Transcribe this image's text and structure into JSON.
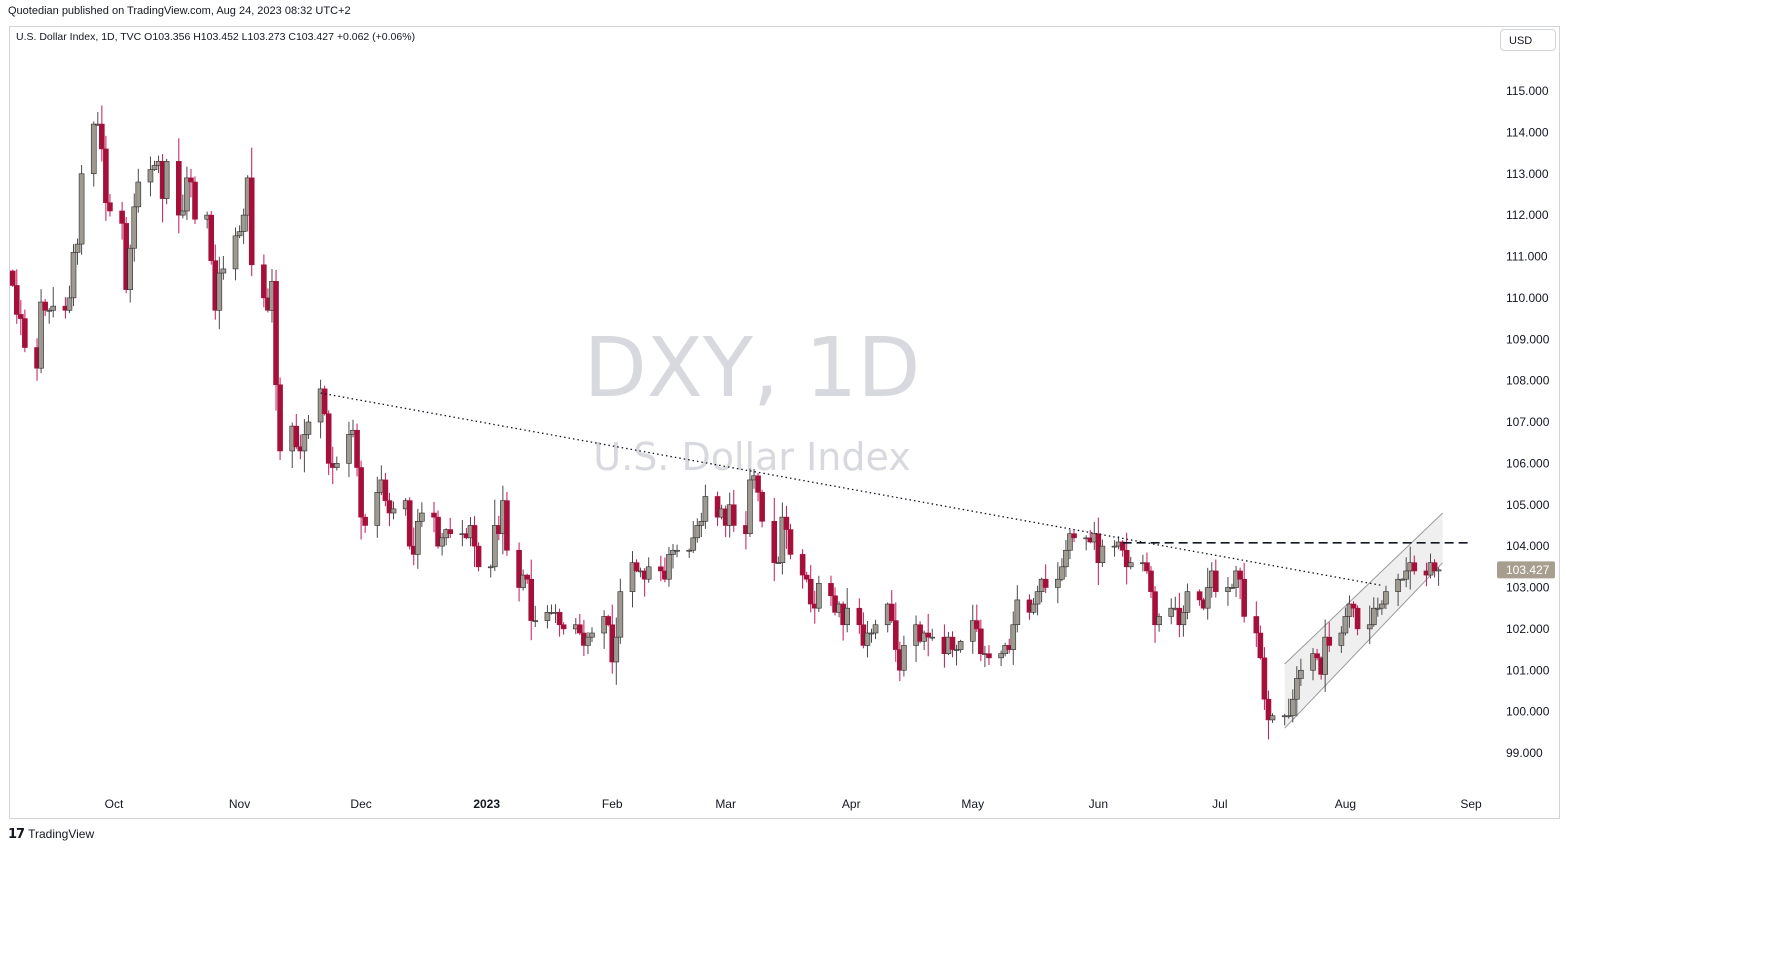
{
  "header": {
    "published": "Quotedian published on TradingView.com, Aug 24, 2023 08:32 UTC+2",
    "legend": "U.S. Dollar Index, 1D, TVC  O103.356  H103.452  L103.273  C103.427  +0.062 (+0.06%)",
    "currency": "USD"
  },
  "footer": {
    "brand_logo": "𝟭𝟳",
    "brand": "TradingView"
  },
  "chart_data": {
    "type": "candlestick",
    "title": "DXY, 1D",
    "subtitle": "U.S. Dollar Index",
    "ylim": [
      98.3,
      116.2
    ],
    "y_ticks": [
      "115.000",
      "114.000",
      "113.000",
      "112.000",
      "111.000",
      "110.000",
      "109.000",
      "108.000",
      "107.000",
      "106.000",
      "105.000",
      "104.000",
      "103.000",
      "102.000",
      "101.000",
      "100.000",
      "99.000"
    ],
    "y_tick_values": [
      115,
      114,
      113,
      112,
      111,
      110,
      109,
      108,
      107,
      106,
      105,
      104,
      103,
      102,
      101,
      100,
      99
    ],
    "x_ticks": [
      {
        "label": "Oct",
        "date": "2022-10-01",
        "bold": false
      },
      {
        "label": "Nov",
        "date": "2022-11-01",
        "bold": false
      },
      {
        "label": "Dec",
        "date": "2022-12-01",
        "bold": false
      },
      {
        "label": "2023",
        "date": "2023-01-01",
        "bold": true
      },
      {
        "label": "Feb",
        "date": "2023-02-01",
        "bold": false
      },
      {
        "label": "Mar",
        "date": "2023-03-01",
        "bold": false
      },
      {
        "label": "Apr",
        "date": "2023-04-01",
        "bold": false
      },
      {
        "label": "May",
        "date": "2023-05-01",
        "bold": false
      },
      {
        "label": "Jun",
        "date": "2023-06-01",
        "bold": false
      },
      {
        "label": "Jul",
        "date": "2023-07-01",
        "bold": false
      },
      {
        "label": "Aug",
        "date": "2023-08-01",
        "bold": false
      },
      {
        "label": "Sep",
        "date": "2023-09-01",
        "bold": false
      }
    ],
    "last_price": "103.427",
    "last_value": 103.427,
    "colors": {
      "up": "#9e9a91",
      "down": "#a5103b",
      "wick_up": "#4a4a4a",
      "wick_down": "#c2185b",
      "last_box": "#a89e90"
    },
    "closes": [
      {
        "d": "2022-09-06",
        "v": 110.3
      },
      {
        "d": "2022-09-07",
        "v": 109.6
      },
      {
        "d": "2022-09-08",
        "v": 109.5
      },
      {
        "d": "2022-09-09",
        "v": 108.8
      },
      {
        "d": "2022-09-12",
        "v": 108.3
      },
      {
        "d": "2022-09-13",
        "v": 109.9
      },
      {
        "d": "2022-09-14",
        "v": 109.7
      },
      {
        "d": "2022-09-15",
        "v": 109.7
      },
      {
        "d": "2022-09-16",
        "v": 109.8
      },
      {
        "d": "2022-09-19",
        "v": 109.7
      },
      {
        "d": "2022-09-20",
        "v": 110.0
      },
      {
        "d": "2022-09-21",
        "v": 111.1
      },
      {
        "d": "2022-09-22",
        "v": 111.3
      },
      {
        "d": "2022-09-23",
        "v": 113.0
      },
      {
        "d": "2022-09-26",
        "v": 114.2
      },
      {
        "d": "2022-09-27",
        "v": 114.2
      },
      {
        "d": "2022-09-28",
        "v": 113.6
      },
      {
        "d": "2022-09-29",
        "v": 112.3
      },
      {
        "d": "2022-09-30",
        "v": 112.1
      },
      {
        "d": "2022-10-03",
        "v": 111.8
      },
      {
        "d": "2022-10-04",
        "v": 110.2
      },
      {
        "d": "2022-10-05",
        "v": 111.2
      },
      {
        "d": "2022-10-06",
        "v": 112.2
      },
      {
        "d": "2022-10-07",
        "v": 112.8
      },
      {
        "d": "2022-10-10",
        "v": 113.1
      },
      {
        "d": "2022-10-11",
        "v": 113.2
      },
      {
        "d": "2022-10-12",
        "v": 113.3
      },
      {
        "d": "2022-10-13",
        "v": 112.4
      },
      {
        "d": "2022-10-14",
        "v": 113.3
      },
      {
        "d": "2022-10-17",
        "v": 112.0
      },
      {
        "d": "2022-10-18",
        "v": 112.1
      },
      {
        "d": "2022-10-19",
        "v": 112.9
      },
      {
        "d": "2022-10-20",
        "v": 112.8
      },
      {
        "d": "2022-10-21",
        "v": 111.9
      },
      {
        "d": "2022-10-24",
        "v": 112.0
      },
      {
        "d": "2022-10-25",
        "v": 110.9
      },
      {
        "d": "2022-10-26",
        "v": 109.7
      },
      {
        "d": "2022-10-27",
        "v": 110.6
      },
      {
        "d": "2022-10-28",
        "v": 110.7
      },
      {
        "d": "2022-10-31",
        "v": 111.5
      },
      {
        "d": "2022-11-01",
        "v": 111.6
      },
      {
        "d": "2022-11-02",
        "v": 112.0
      },
      {
        "d": "2022-11-03",
        "v": 112.9
      },
      {
        "d": "2022-11-04",
        "v": 110.8
      },
      {
        "d": "2022-11-07",
        "v": 110.0
      },
      {
        "d": "2022-11-08",
        "v": 109.7
      },
      {
        "d": "2022-11-09",
        "v": 110.4
      },
      {
        "d": "2022-11-10",
        "v": 107.9
      },
      {
        "d": "2022-11-11",
        "v": 106.3
      },
      {
        "d": "2022-11-14",
        "v": 106.9
      },
      {
        "d": "2022-11-15",
        "v": 106.4
      },
      {
        "d": "2022-11-16",
        "v": 106.3
      },
      {
        "d": "2022-11-17",
        "v": 106.7
      },
      {
        "d": "2022-11-18",
        "v": 107.0
      },
      {
        "d": "2022-11-21",
        "v": 107.8
      },
      {
        "d": "2022-11-22",
        "v": 107.2
      },
      {
        "d": "2022-11-23",
        "v": 106.0
      },
      {
        "d": "2022-11-24",
        "v": 105.9
      },
      {
        "d": "2022-11-25",
        "v": 106.0
      },
      {
        "d": "2022-11-28",
        "v": 106.7
      },
      {
        "d": "2022-11-29",
        "v": 106.8
      },
      {
        "d": "2022-11-30",
        "v": 105.9
      },
      {
        "d": "2022-12-01",
        "v": 104.7
      },
      {
        "d": "2022-12-02",
        "v": 104.5
      },
      {
        "d": "2022-12-05",
        "v": 105.3
      },
      {
        "d": "2022-12-06",
        "v": 105.6
      },
      {
        "d": "2022-12-07",
        "v": 105.1
      },
      {
        "d": "2022-12-08",
        "v": 104.8
      },
      {
        "d": "2022-12-09",
        "v": 104.9
      },
      {
        "d": "2022-12-12",
        "v": 105.1
      },
      {
        "d": "2022-12-13",
        "v": 104.0
      },
      {
        "d": "2022-12-14",
        "v": 103.8
      },
      {
        "d": "2022-12-15",
        "v": 104.6
      },
      {
        "d": "2022-12-16",
        "v": 104.8
      },
      {
        "d": "2022-12-19",
        "v": 104.7
      },
      {
        "d": "2022-12-20",
        "v": 104.0
      },
      {
        "d": "2022-12-21",
        "v": 104.2
      },
      {
        "d": "2022-12-22",
        "v": 104.4
      },
      {
        "d": "2022-12-23",
        "v": 104.3
      },
      {
        "d": "2022-12-26",
        "v": 104.3
      },
      {
        "d": "2022-12-27",
        "v": 104.2
      },
      {
        "d": "2022-12-28",
        "v": 104.5
      },
      {
        "d": "2022-12-29",
        "v": 104.0
      },
      {
        "d": "2022-12-30",
        "v": 103.5
      },
      {
        "d": "2023-01-02",
        "v": 103.5
      },
      {
        "d": "2023-01-03",
        "v": 104.5
      },
      {
        "d": "2023-01-04",
        "v": 104.3
      },
      {
        "d": "2023-01-05",
        "v": 105.1
      },
      {
        "d": "2023-01-06",
        "v": 103.9
      },
      {
        "d": "2023-01-09",
        "v": 103.0
      },
      {
        "d": "2023-01-10",
        "v": 103.3
      },
      {
        "d": "2023-01-11",
        "v": 103.2
      },
      {
        "d": "2023-01-12",
        "v": 102.2
      },
      {
        "d": "2023-01-13",
        "v": 102.2
      },
      {
        "d": "2023-01-16",
        "v": 102.4
      },
      {
        "d": "2023-01-17",
        "v": 102.4
      },
      {
        "d": "2023-01-18",
        "v": 102.4
      },
      {
        "d": "2023-01-19",
        "v": 102.1
      },
      {
        "d": "2023-01-20",
        "v": 102.0
      },
      {
        "d": "2023-01-23",
        "v": 102.1
      },
      {
        "d": "2023-01-24",
        "v": 101.9
      },
      {
        "d": "2023-01-25",
        "v": 101.6
      },
      {
        "d": "2023-01-26",
        "v": 101.8
      },
      {
        "d": "2023-01-27",
        "v": 101.9
      },
      {
        "d": "2023-01-30",
        "v": 102.3
      },
      {
        "d": "2023-01-31",
        "v": 102.1
      },
      {
        "d": "2023-02-01",
        "v": 101.2
      },
      {
        "d": "2023-02-02",
        "v": 101.8
      },
      {
        "d": "2023-02-03",
        "v": 102.9
      },
      {
        "d": "2023-02-06",
        "v": 103.6
      },
      {
        "d": "2023-02-07",
        "v": 103.4
      },
      {
        "d": "2023-02-08",
        "v": 103.4
      },
      {
        "d": "2023-02-09",
        "v": 103.2
      },
      {
        "d": "2023-02-10",
        "v": 103.5
      },
      {
        "d": "2023-02-13",
        "v": 103.4
      },
      {
        "d": "2023-02-14",
        "v": 103.2
      },
      {
        "d": "2023-02-15",
        "v": 103.8
      },
      {
        "d": "2023-02-16",
        "v": 103.9
      },
      {
        "d": "2023-02-17",
        "v": 103.9
      },
      {
        "d": "2023-02-20",
        "v": 103.9
      },
      {
        "d": "2023-02-21",
        "v": 104.2
      },
      {
        "d": "2023-02-22",
        "v": 104.5
      },
      {
        "d": "2023-02-23",
        "v": 104.6
      },
      {
        "d": "2023-02-24",
        "v": 105.2
      },
      {
        "d": "2023-02-27",
        "v": 104.7
      },
      {
        "d": "2023-02-28",
        "v": 104.9
      },
      {
        "d": "2023-03-01",
        "v": 104.5
      },
      {
        "d": "2023-03-02",
        "v": 105.0
      },
      {
        "d": "2023-03-03",
        "v": 104.5
      },
      {
        "d": "2023-03-06",
        "v": 104.3
      },
      {
        "d": "2023-03-07",
        "v": 105.6
      },
      {
        "d": "2023-03-08",
        "v": 105.7
      },
      {
        "d": "2023-03-09",
        "v": 105.3
      },
      {
        "d": "2023-03-10",
        "v": 104.6
      },
      {
        "d": "2023-03-13",
        "v": 103.6
      },
      {
        "d": "2023-03-14",
        "v": 103.6
      },
      {
        "d": "2023-03-15",
        "v": 104.7
      },
      {
        "d": "2023-03-16",
        "v": 104.4
      },
      {
        "d": "2023-03-17",
        "v": 103.8
      },
      {
        "d": "2023-03-20",
        "v": 103.3
      },
      {
        "d": "2023-03-21",
        "v": 103.2
      },
      {
        "d": "2023-03-22",
        "v": 102.6
      },
      {
        "d": "2023-03-23",
        "v": 102.5
      },
      {
        "d": "2023-03-24",
        "v": 103.1
      },
      {
        "d": "2023-03-27",
        "v": 102.8
      },
      {
        "d": "2023-03-28",
        "v": 102.4
      },
      {
        "d": "2023-03-29",
        "v": 102.6
      },
      {
        "d": "2023-03-30",
        "v": 102.1
      },
      {
        "d": "2023-03-31",
        "v": 102.5
      },
      {
        "d": "2023-04-03",
        "v": 102.1
      },
      {
        "d": "2023-04-04",
        "v": 101.6
      },
      {
        "d": "2023-04-05",
        "v": 101.9
      },
      {
        "d": "2023-04-06",
        "v": 101.9
      },
      {
        "d": "2023-04-07",
        "v": 102.1
      },
      {
        "d": "2023-04-10",
        "v": 102.6
      },
      {
        "d": "2023-04-11",
        "v": 102.2
      },
      {
        "d": "2023-04-12",
        "v": 101.5
      },
      {
        "d": "2023-04-13",
        "v": 101.0
      },
      {
        "d": "2023-04-14",
        "v": 101.6
      },
      {
        "d": "2023-04-17",
        "v": 102.1
      },
      {
        "d": "2023-04-18",
        "v": 101.7
      },
      {
        "d": "2023-04-19",
        "v": 101.9
      },
      {
        "d": "2023-04-20",
        "v": 101.8
      },
      {
        "d": "2023-04-21",
        "v": 101.8
      },
      {
        "d": "2023-04-24",
        "v": 101.4
      },
      {
        "d": "2023-04-25",
        "v": 101.8
      },
      {
        "d": "2023-04-26",
        "v": 101.5
      },
      {
        "d": "2023-04-27",
        "v": 101.5
      },
      {
        "d": "2023-04-28",
        "v": 101.7
      },
      {
        "d": "2023-05-01",
        "v": 102.2
      },
      {
        "d": "2023-05-02",
        "v": 102.0
      },
      {
        "d": "2023-05-03",
        "v": 101.4
      },
      {
        "d": "2023-05-04",
        "v": 101.4
      },
      {
        "d": "2023-05-05",
        "v": 101.3
      },
      {
        "d": "2023-05-08",
        "v": 101.4
      },
      {
        "d": "2023-05-09",
        "v": 101.6
      },
      {
        "d": "2023-05-10",
        "v": 101.5
      },
      {
        "d": "2023-05-11",
        "v": 102.1
      },
      {
        "d": "2023-05-12",
        "v": 102.7
      },
      {
        "d": "2023-05-15",
        "v": 102.4
      },
      {
        "d": "2023-05-16",
        "v": 102.6
      },
      {
        "d": "2023-05-17",
        "v": 102.9
      },
      {
        "d": "2023-05-18",
        "v": 103.2
      },
      {
        "d": "2023-05-19",
        "v": 103.0
      },
      {
        "d": "2023-05-22",
        "v": 103.2
      },
      {
        "d": "2023-05-23",
        "v": 103.5
      },
      {
        "d": "2023-05-24",
        "v": 103.9
      },
      {
        "d": "2023-05-25",
        "v": 104.3
      },
      {
        "d": "2023-05-26",
        "v": 104.2
      },
      {
        "d": "2023-05-29",
        "v": 104.2
      },
      {
        "d": "2023-05-30",
        "v": 104.1
      },
      {
        "d": "2023-05-31",
        "v": 104.3
      },
      {
        "d": "2023-06-01",
        "v": 103.6
      },
      {
        "d": "2023-06-02",
        "v": 104.0
      },
      {
        "d": "2023-06-05",
        "v": 104.0
      },
      {
        "d": "2023-06-06",
        "v": 104.1
      },
      {
        "d": "2023-06-07",
        "v": 103.9
      },
      {
        "d": "2023-06-08",
        "v": 103.5
      },
      {
        "d": "2023-06-09",
        "v": 103.6
      },
      {
        "d": "2023-06-12",
        "v": 103.6
      },
      {
        "d": "2023-06-13",
        "v": 103.4
      },
      {
        "d": "2023-06-14",
        "v": 102.9
      },
      {
        "d": "2023-06-15",
        "v": 102.1
      },
      {
        "d": "2023-06-16",
        "v": 102.3
      },
      {
        "d": "2023-06-19",
        "v": 102.5
      },
      {
        "d": "2023-06-20",
        "v": 102.5
      },
      {
        "d": "2023-06-21",
        "v": 102.1
      },
      {
        "d": "2023-06-22",
        "v": 102.4
      },
      {
        "d": "2023-06-23",
        "v": 102.9
      },
      {
        "d": "2023-06-26",
        "v": 102.7
      },
      {
        "d": "2023-06-27",
        "v": 102.5
      },
      {
        "d": "2023-06-28",
        "v": 103.0
      },
      {
        "d": "2023-06-29",
        "v": 103.4
      },
      {
        "d": "2023-06-30",
        "v": 102.9
      },
      {
        "d": "2023-07-03",
        "v": 103.0
      },
      {
        "d": "2023-07-04",
        "v": 103.0
      },
      {
        "d": "2023-07-05",
        "v": 103.4
      },
      {
        "d": "2023-07-06",
        "v": 103.2
      },
      {
        "d": "2023-07-07",
        "v": 102.3
      },
      {
        "d": "2023-07-10",
        "v": 101.9
      },
      {
        "d": "2023-07-11",
        "v": 101.3
      },
      {
        "d": "2023-07-12",
        "v": 100.3
      },
      {
        "d": "2023-07-13",
        "v": 99.8
      },
      {
        "d": "2023-07-14",
        "v": 99.9
      },
      {
        "d": "2023-07-17",
        "v": 99.9
      },
      {
        "d": "2023-07-18",
        "v": 99.9
      },
      {
        "d": "2023-07-19",
        "v": 100.3
      },
      {
        "d": "2023-07-20",
        "v": 100.8
      },
      {
        "d": "2023-07-21",
        "v": 101.0
      },
      {
        "d": "2023-07-24",
        "v": 101.4
      },
      {
        "d": "2023-07-25",
        "v": 101.3
      },
      {
        "d": "2023-07-26",
        "v": 100.9
      },
      {
        "d": "2023-07-27",
        "v": 101.8
      },
      {
        "d": "2023-07-28",
        "v": 101.6
      },
      {
        "d": "2023-07-31",
        "v": 101.9
      },
      {
        "d": "2023-08-01",
        "v": 102.3
      },
      {
        "d": "2023-08-02",
        "v": 102.6
      },
      {
        "d": "2023-08-03",
        "v": 102.5
      },
      {
        "d": "2023-08-04",
        "v": 102.0
      },
      {
        "d": "2023-08-07",
        "v": 102.1
      },
      {
        "d": "2023-08-08",
        "v": 102.5
      },
      {
        "d": "2023-08-09",
        "v": 102.5
      },
      {
        "d": "2023-08-10",
        "v": 102.6
      },
      {
        "d": "2023-08-11",
        "v": 102.9
      },
      {
        "d": "2023-08-14",
        "v": 103.2
      },
      {
        "d": "2023-08-15",
        "v": 103.2
      },
      {
        "d": "2023-08-16",
        "v": 103.4
      },
      {
        "d": "2023-08-17",
        "v": 103.6
      },
      {
        "d": "2023-08-18",
        "v": 103.4
      },
      {
        "d": "2023-08-21",
        "v": 103.3
      },
      {
        "d": "2023-08-22",
        "v": 103.6
      },
      {
        "d": "2023-08-23",
        "v": 103.4
      },
      {
        "d": "2023-08-24",
        "v": 103.427
      }
    ],
    "annotations": [
      {
        "type": "descending-dotted-trendline",
        "from": {
          "d": "2022-11-21",
          "v": 107.7
        },
        "to": {
          "d": "2023-08-10",
          "v": 103.05
        }
      },
      {
        "type": "horizontal-dashed-line",
        "from": {
          "d": "2023-06-07",
          "v": 104.08
        },
        "to": {
          "d": "2023-09-01",
          "v": 104.08
        }
      },
      {
        "type": "rising-channel",
        "lower": [
          {
            "d": "2023-07-17",
            "v": 99.6
          },
          {
            "d": "2023-08-25",
            "v": 103.6
          }
        ],
        "upper": [
          {
            "d": "2023-07-17",
            "v": 101.15
          },
          {
            "d": "2023-08-25",
            "v": 104.8
          }
        ]
      }
    ]
  }
}
